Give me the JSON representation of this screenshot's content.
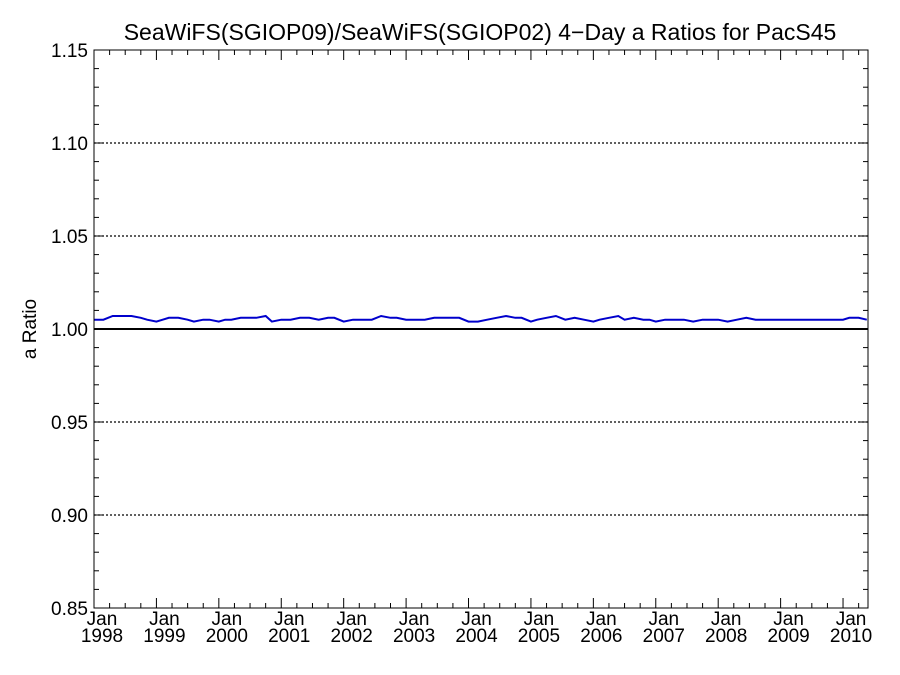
{
  "chart_data": {
    "type": "line",
    "title": "SeaWiFS(SGIOP09)/SeaWiFS(SGIOP02) 4−Day a Ratios for PacS45",
    "ylabel": "a Ratio",
    "xlabel": "",
    "ylim": [
      0.85,
      1.15
    ],
    "xlim": [
      1998.0,
      2010.4
    ],
    "y_ticks": [
      "0.85",
      "0.90",
      "0.95",
      "1.00",
      "1.05",
      "1.10",
      "1.15"
    ],
    "y_tick_values": [
      0.85,
      0.9,
      0.95,
      1.0,
      1.05,
      1.1,
      1.15
    ],
    "x_ticks": [
      {
        "month": "Jan",
        "year": "1998",
        "value": 1998
      },
      {
        "month": "Jan",
        "year": "1999",
        "value": 1999
      },
      {
        "month": "Jan",
        "year": "2000",
        "value": 2000
      },
      {
        "month": "Jan",
        "year": "2001",
        "value": 2001
      },
      {
        "month": "Jan",
        "year": "2002",
        "value": 2002
      },
      {
        "month": "Jan",
        "year": "2003",
        "value": 2003
      },
      {
        "month": "Jan",
        "year": "2004",
        "value": 2004
      },
      {
        "month": "Jan",
        "year": "2005",
        "value": 2005
      },
      {
        "month": "Jan",
        "year": "2006",
        "value": 2006
      },
      {
        "month": "Jan",
        "year": "2007",
        "value": 2007
      },
      {
        "month": "Jan",
        "year": "2008",
        "value": 2008
      },
      {
        "month": "Jan",
        "year": "2009",
        "value": 2009
      },
      {
        "month": "Jan",
        "year": "2010",
        "value": 2010
      }
    ],
    "grid": "dotted horizontal lines at major y ticks",
    "reference_line": 1.0,
    "series": [
      {
        "color": "#0000cc",
        "x": [
          1998.0,
          1998.15,
          1998.3,
          1998.45,
          1998.6,
          1998.75,
          1998.85,
          1999.0,
          1999.1,
          1999.2,
          1999.35,
          1999.5,
          1999.6,
          1999.75,
          1999.85,
          2000.0,
          2000.1,
          2000.2,
          2000.35,
          2000.5,
          2000.6,
          2000.75,
          2000.85,
          2001.0,
          2001.15,
          2001.3,
          2001.45,
          2001.6,
          2001.75,
          2001.85,
          2002.0,
          2002.15,
          2002.3,
          2002.45,
          2002.6,
          2002.75,
          2002.85,
          2003.0,
          2003.15,
          2003.3,
          2003.45,
          2003.6,
          2003.75,
          2003.85,
          2004.0,
          2004.15,
          2004.3,
          2004.45,
          2004.6,
          2004.75,
          2004.85,
          2005.0,
          2005.1,
          2005.25,
          2005.4,
          2005.55,
          2005.7,
          2005.85,
          2006.0,
          2006.1,
          2006.25,
          2006.4,
          2006.5,
          2006.65,
          2006.8,
          2006.9,
          2007.0,
          2007.15,
          2007.3,
          2007.45,
          2007.6,
          2007.75,
          2007.9,
          2008.0,
          2008.15,
          2008.3,
          2008.45,
          2008.6,
          2008.75,
          2008.9,
          2009.0,
          2009.15,
          2009.3,
          2009.45,
          2009.6,
          2009.75,
          2009.9,
          2010.0,
          2010.1,
          2010.25,
          2010.38
        ],
        "values": [
          1.005,
          1.005,
          1.007,
          1.007,
          1.007,
          1.006,
          1.005,
          1.004,
          1.005,
          1.006,
          1.006,
          1.005,
          1.004,
          1.005,
          1.005,
          1.004,
          1.005,
          1.005,
          1.006,
          1.006,
          1.006,
          1.007,
          1.004,
          1.005,
          1.005,
          1.006,
          1.006,
          1.005,
          1.006,
          1.006,
          1.004,
          1.005,
          1.005,
          1.005,
          1.007,
          1.006,
          1.006,
          1.005,
          1.005,
          1.005,
          1.006,
          1.006,
          1.006,
          1.006,
          1.004,
          1.004,
          1.005,
          1.006,
          1.007,
          1.006,
          1.006,
          1.004,
          1.005,
          1.006,
          1.007,
          1.005,
          1.006,
          1.005,
          1.004,
          1.005,
          1.006,
          1.007,
          1.005,
          1.006,
          1.005,
          1.005,
          1.004,
          1.005,
          1.005,
          1.005,
          1.004,
          1.005,
          1.005,
          1.005,
          1.004,
          1.005,
          1.006,
          1.005,
          1.005,
          1.005,
          1.005,
          1.005,
          1.005,
          1.005,
          1.005,
          1.005,
          1.005,
          1.005,
          1.006,
          1.006,
          1.005
        ]
      }
    ]
  }
}
